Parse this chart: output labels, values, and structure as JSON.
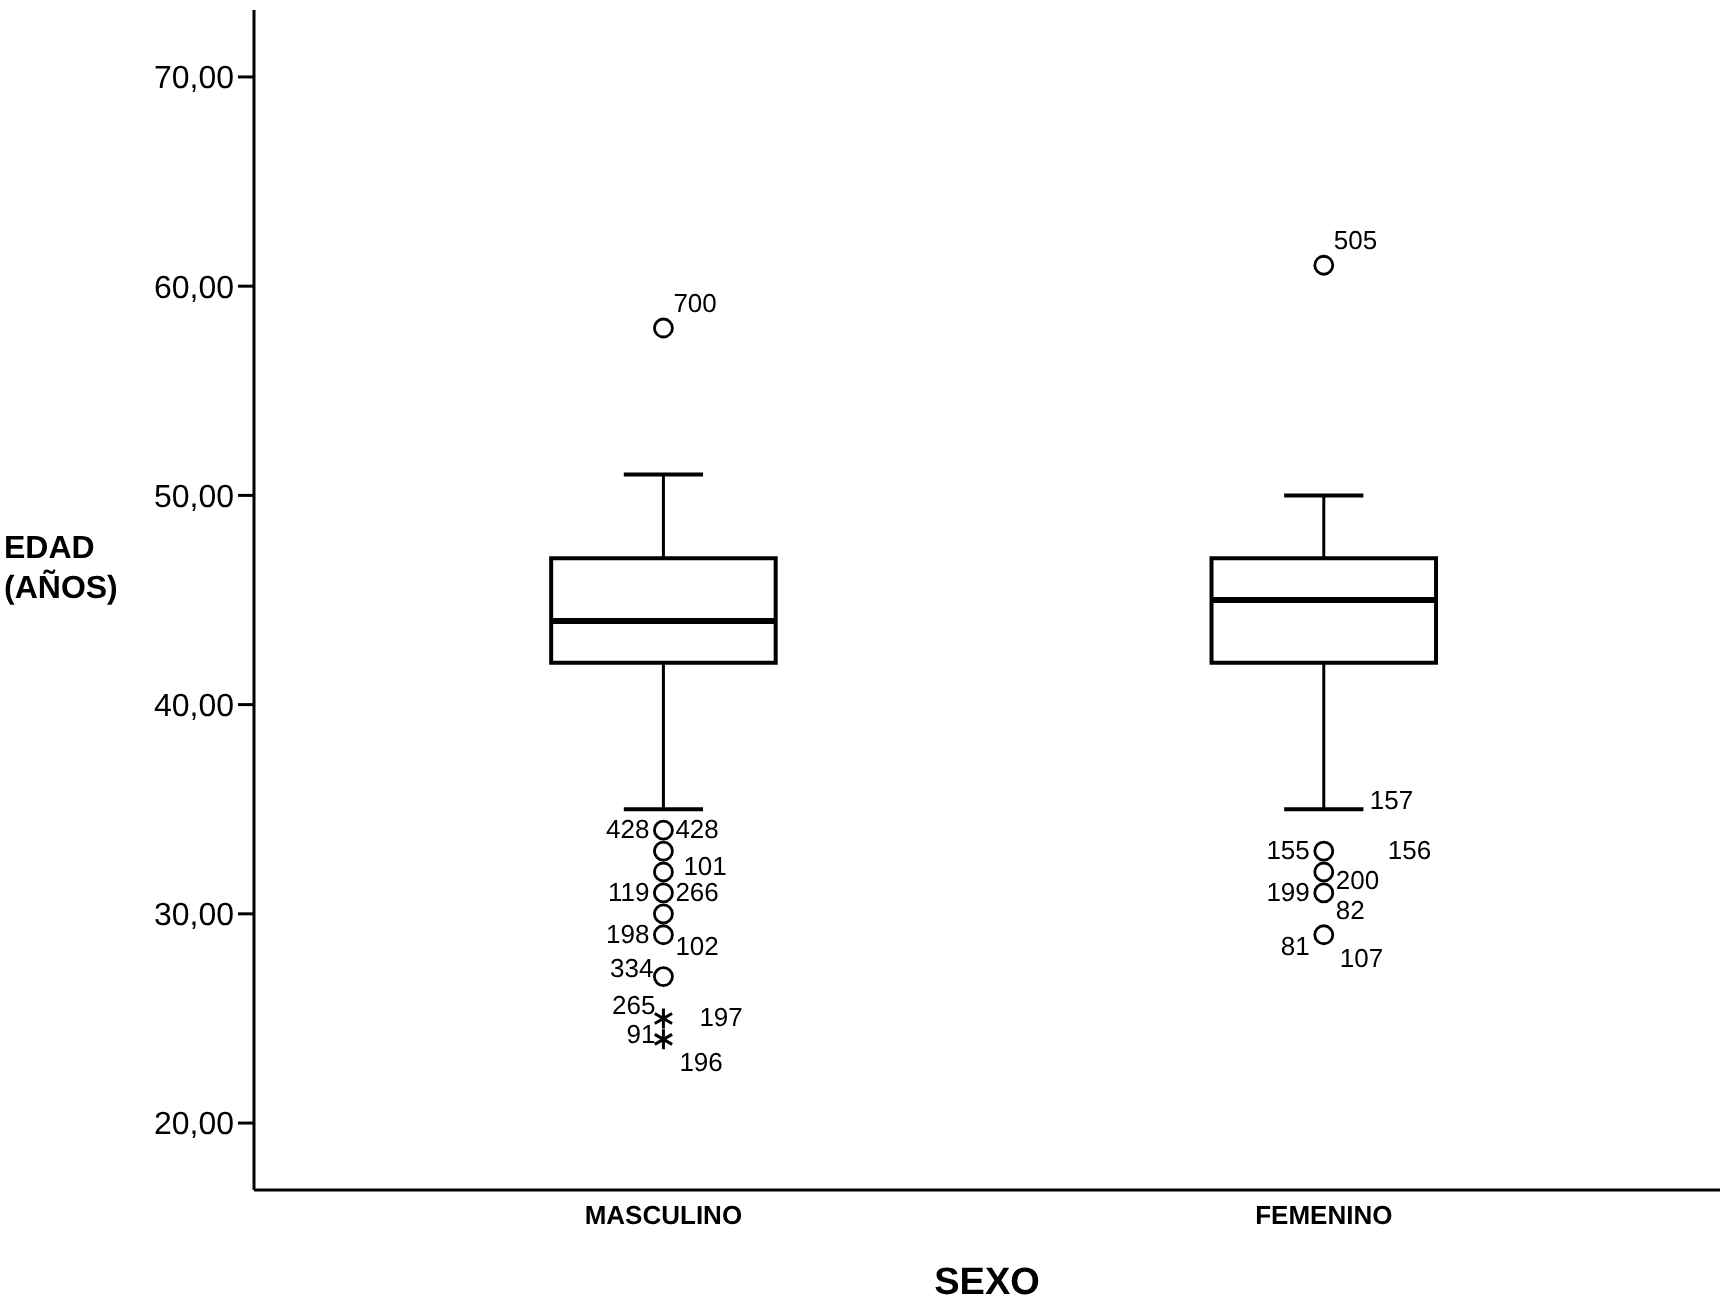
{
  "chart_data": {
    "type": "box",
    "xlabel": "SEXO",
    "ylabel": "EDAD (AÑOS)",
    "categories": [
      "MASCULINO",
      "FEMENINO"
    ],
    "boxes": [
      {
        "low": 35,
        "q1": 42,
        "median": 44,
        "q3": 47,
        "high": 51,
        "outliers": [
          58,
          34,
          33,
          32,
          31,
          30,
          29,
          27,
          25,
          24
        ]
      },
      {
        "low": 35,
        "q1": 42,
        "median": 45,
        "q3": 47,
        "high": 50,
        "outliers": [
          61,
          33,
          32,
          31,
          29
        ]
      }
    ],
    "ylim": [
      16.8,
      73.2
    ],
    "yticks": [
      {
        "value": 20,
        "label": "20,00"
      },
      {
        "value": 30,
        "label": "30,00"
      },
      {
        "value": 40,
        "label": "40,00"
      },
      {
        "value": 50,
        "label": "50,00"
      },
      {
        "value": 60,
        "label": "60,00"
      },
      {
        "value": 70,
        "label": "70,00"
      }
    ],
    "grid": false,
    "annotations": [
      "700",
      "428",
      "428",
      "101",
      "119",
      "266",
      "198",
      "102",
      "334",
      "265",
      "197",
      "91",
      "196",
      "505",
      "157",
      "155",
      "156",
      "199",
      "200",
      "81",
      "82",
      "107"
    ]
  }
}
